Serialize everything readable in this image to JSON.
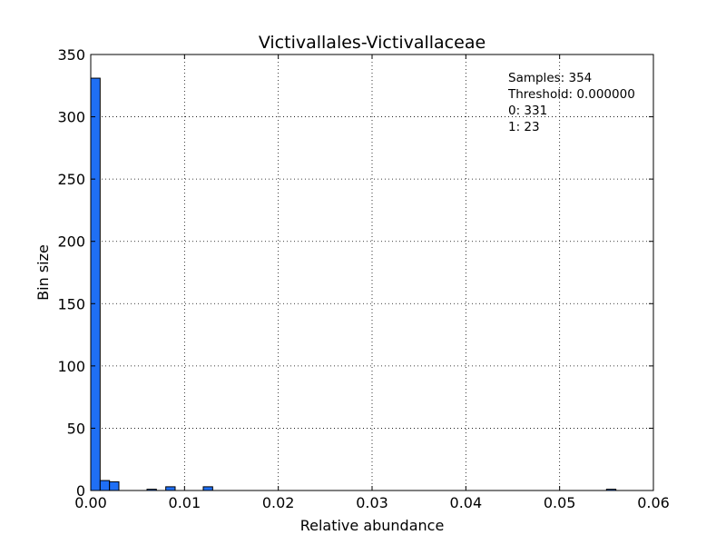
{
  "chart_data": {
    "type": "bar",
    "title": "Victivallales-Victivallaceae",
    "xlabel": "Relative abundance",
    "ylabel": "Bin size",
    "xlim": [
      0,
      0.06
    ],
    "ylim": [
      0,
      350
    ],
    "xticks": [
      "0.00",
      "0.01",
      "0.02",
      "0.03",
      "0.04",
      "0.05",
      "0.06"
    ],
    "yticks": [
      "0",
      "50",
      "100",
      "150",
      "200",
      "250",
      "300",
      "350"
    ],
    "grid": true,
    "bar_color": "#1f6ff5",
    "bins": [
      {
        "x0": 0.0,
        "x1": 0.001,
        "count": 331
      },
      {
        "x0": 0.001,
        "x1": 0.002,
        "count": 8
      },
      {
        "x0": 0.002,
        "x1": 0.003,
        "count": 7
      },
      {
        "x0": 0.006,
        "x1": 0.007,
        "count": 1
      },
      {
        "x0": 0.008,
        "x1": 0.009,
        "count": 3
      },
      {
        "x0": 0.012,
        "x1": 0.013,
        "count": 3
      },
      {
        "x0": 0.055,
        "x1": 0.056,
        "count": 1
      }
    ],
    "annotations": [
      "Samples: 354",
      "Threshold: 0.000000",
      "0: 331",
      "1: 23"
    ]
  }
}
